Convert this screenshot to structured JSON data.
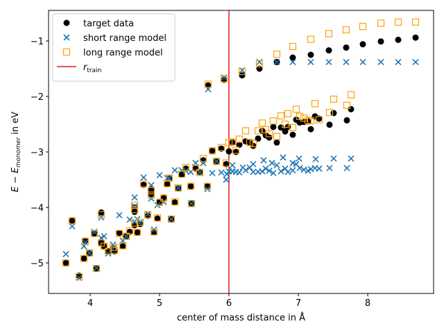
{
  "chart_data": {
    "type": "scatter",
    "xlabel": "center of mass distance in Å",
    "ylabel": "E − E_monomer in eV",
    "ylabel_main": "E − E",
    "ylabel_sub": "monomer",
    "ylabel_tail": " in eV",
    "xlim": [
      3.4,
      8.95
    ],
    "ylim": [
      -5.55,
      -0.45
    ],
    "x_ticks": [
      4,
      5,
      6,
      7,
      8
    ],
    "y_ticks": [
      -5,
      -4,
      -3,
      -2,
      -1
    ],
    "x_tick_labels": [
      "4",
      "5",
      "6",
      "7",
      "8"
    ],
    "y_tick_labels": [
      "−5",
      "−4",
      "−3",
      "−2",
      "−1"
    ],
    "legend_position": "upper-left",
    "legend": [
      {
        "label": "target data",
        "marker": "circle",
        "color": "#000000"
      },
      {
        "label": "short range model",
        "marker": "x",
        "color": "#1f77b4"
      },
      {
        "label": "long range model",
        "marker": "square",
        "color": "#ff9f0a"
      },
      {
        "label_main": "r",
        "label_sub": "train",
        "marker": "line",
        "color": "#e31a1c"
      }
    ],
    "vline": {
      "x": 6.0,
      "color": "#e31a1c"
    },
    "series": [
      {
        "name": "target data",
        "marker": "circle",
        "color": "#000000",
        "points": [
          [
            3.65,
            -5.0
          ],
          [
            3.74,
            -4.24
          ],
          [
            3.84,
            -5.23
          ],
          [
            3.91,
            -4.92
          ],
          [
            3.93,
            -4.6
          ],
          [
            3.99,
            -4.83
          ],
          [
            4.06,
            -4.47
          ],
          [
            4.09,
            -5.1
          ],
          [
            4.16,
            -4.09
          ],
          [
            4.16,
            -4.64
          ],
          [
            4.2,
            -4.7
          ],
          [
            4.26,
            -4.79
          ],
          [
            4.33,
            -4.74
          ],
          [
            4.35,
            -4.79
          ],
          [
            4.42,
            -4.46
          ],
          [
            4.47,
            -4.7
          ],
          [
            4.52,
            -4.52
          ],
          [
            4.57,
            -4.44
          ],
          [
            4.64,
            -4.0
          ],
          [
            4.64,
            -4.08
          ],
          [
            4.64,
            -4.32
          ],
          [
            4.68,
            -4.45
          ],
          [
            4.72,
            -4.3
          ],
          [
            4.77,
            -3.59
          ],
          [
            4.83,
            -4.15
          ],
          [
            4.88,
            -3.68
          ],
          [
            4.88,
            -3.76
          ],
          [
            4.92,
            -4.45
          ],
          [
            4.97,
            -4.2
          ],
          [
            5.0,
            -3.9
          ],
          [
            5.06,
            -3.83
          ],
          [
            5.11,
            -3.58
          ],
          [
            5.14,
            -3.48
          ],
          [
            5.17,
            -4.21
          ],
          [
            5.22,
            -3.91
          ],
          [
            5.27,
            -3.66
          ],
          [
            5.32,
            -3.41
          ],
          [
            5.38,
            -3.3
          ],
          [
            5.45,
            -3.62
          ],
          [
            5.46,
            -3.93
          ],
          [
            5.52,
            -3.3
          ],
          [
            5.58,
            -3.36
          ],
          [
            5.63,
            -3.15
          ],
          [
            5.69,
            -3.62
          ],
          [
            5.7,
            -1.8
          ],
          [
            5.76,
            -2.98
          ],
          [
            5.82,
            -3.17
          ],
          [
            5.89,
            -2.94
          ],
          [
            5.93,
            -1.7
          ],
          [
            5.96,
            -3.22
          ],
          [
            6.0,
            -2.99
          ],
          [
            6.05,
            -2.83
          ],
          [
            6.1,
            -3.0
          ],
          [
            6.15,
            -2.87
          ],
          [
            6.19,
            -1.62
          ],
          [
            6.24,
            -2.81
          ],
          [
            6.3,
            -2.83
          ],
          [
            6.35,
            -2.89
          ],
          [
            6.42,
            -2.76
          ],
          [
            6.44,
            -1.5
          ],
          [
            6.48,
            -2.62
          ],
          [
            6.53,
            -2.7
          ],
          [
            6.58,
            -2.74
          ],
          [
            6.64,
            -2.55
          ],
          [
            6.69,
            -2.83
          ],
          [
            6.69,
            -1.38
          ],
          [
            6.75,
            -2.56
          ],
          [
            6.81,
            -2.63
          ],
          [
            6.85,
            -2.55
          ],
          [
            6.92,
            -1.3
          ],
          [
            6.92,
            -2.69
          ],
          [
            6.97,
            -2.42
          ],
          [
            7.02,
            -2.47
          ],
          [
            7.08,
            -2.46
          ],
          [
            7.14,
            -2.45
          ],
          [
            7.18,
            -1.25
          ],
          [
            7.18,
            -2.59
          ],
          [
            7.24,
            -2.36
          ],
          [
            7.3,
            -2.4
          ],
          [
            7.44,
            -1.17
          ],
          [
            7.45,
            -2.51
          ],
          [
            7.51,
            -2.3
          ],
          [
            7.69,
            -1.12
          ],
          [
            7.7,
            -2.43
          ],
          [
            7.76,
            -2.23
          ],
          [
            7.93,
            -1.06
          ],
          [
            8.19,
            -1.01
          ],
          [
            8.44,
            -0.98
          ],
          [
            8.69,
            -0.94
          ]
        ]
      },
      {
        "name": "short range model",
        "marker": "x",
        "color": "#1f77b4",
        "points": [
          [
            3.65,
            -4.84
          ],
          [
            3.74,
            -4.34
          ],
          [
            3.84,
            -5.27
          ],
          [
            3.91,
            -4.7
          ],
          [
            3.93,
            -4.63
          ],
          [
            3.99,
            -4.82
          ],
          [
            4.06,
            -4.44
          ],
          [
            4.09,
            -5.09
          ],
          [
            4.16,
            -4.18
          ],
          [
            4.16,
            -4.55
          ],
          [
            4.2,
            -4.52
          ],
          [
            4.26,
            -4.83
          ],
          [
            4.33,
            -4.67
          ],
          [
            4.35,
            -4.71
          ],
          [
            4.42,
            -4.14
          ],
          [
            4.47,
            -4.6
          ],
          [
            4.52,
            -4.52
          ],
          [
            4.57,
            -4.22
          ],
          [
            4.64,
            -3.82
          ],
          [
            4.64,
            -3.98
          ],
          [
            4.64,
            -4.26
          ],
          [
            4.68,
            -4.21
          ],
          [
            4.72,
            -4.27
          ],
          [
            4.77,
            -3.46
          ],
          [
            4.83,
            -4.12
          ],
          [
            4.88,
            -3.6
          ],
          [
            4.88,
            -3.84
          ],
          [
            4.92,
            -4.4
          ],
          [
            4.97,
            -3.96
          ],
          [
            5.0,
            -3.42
          ],
          [
            5.06,
            -3.9
          ],
          [
            5.11,
            -3.47
          ],
          [
            5.14,
            -3.48
          ],
          [
            5.17,
            -4.21
          ],
          [
            5.22,
            -3.33
          ],
          [
            5.27,
            -3.65
          ],
          [
            5.32,
            -3.33
          ],
          [
            5.38,
            -3.34
          ],
          [
            5.45,
            -3.36
          ],
          [
            5.46,
            -3.93
          ],
          [
            5.52,
            -3.2
          ],
          [
            5.58,
            -3.37
          ],
          [
            5.63,
            -3.2
          ],
          [
            5.69,
            -3.67
          ],
          [
            5.7,
            -1.87
          ],
          [
            5.76,
            -3.38
          ],
          [
            5.82,
            -3.17
          ],
          [
            5.89,
            -3.37
          ],
          [
            5.93,
            -1.66
          ],
          [
            5.96,
            -3.5
          ],
          [
            6.0,
            -3.35
          ],
          [
            6.05,
            -3.24
          ],
          [
            6.1,
            -3.36
          ],
          [
            6.15,
            -3.37
          ],
          [
            6.19,
            -1.53
          ],
          [
            6.24,
            -3.33
          ],
          [
            6.3,
            -3.28
          ],
          [
            6.35,
            -3.36
          ],
          [
            6.42,
            -3.36
          ],
          [
            6.44,
            -1.38
          ],
          [
            6.48,
            -3.35
          ],
          [
            6.53,
            -3.3
          ],
          [
            6.58,
            -3.34
          ],
          [
            6.64,
            -3.38
          ],
          [
            6.69,
            -3.24
          ],
          [
            6.69,
            -1.38
          ],
          [
            6.75,
            -3.35
          ],
          [
            6.81,
            -3.3
          ],
          [
            6.85,
            -3.36
          ],
          [
            6.92,
            -1.38
          ],
          [
            6.92,
            -3.33
          ],
          [
            6.97,
            -3.22
          ],
          [
            7.02,
            -3.29
          ],
          [
            7.08,
            -3.32
          ],
          [
            7.14,
            -3.34
          ],
          [
            7.18,
            -1.38
          ],
          [
            7.18,
            -3.31
          ],
          [
            7.24,
            -3.29
          ],
          [
            7.3,
            -3.3
          ],
          [
            7.44,
            -1.38
          ],
          [
            7.45,
            -3.29
          ],
          [
            7.51,
            -3.12
          ],
          [
            7.69,
            -1.38
          ],
          [
            7.7,
            -3.29
          ],
          [
            7.76,
            -3.12
          ],
          [
            7.93,
            -1.38
          ],
          [
            8.19,
            -1.38
          ],
          [
            8.44,
            -1.38
          ],
          [
            8.69,
            -1.38
          ],
          [
            6.05,
            -3.35
          ],
          [
            6.2,
            -3.28
          ],
          [
            6.35,
            -3.22
          ],
          [
            6.5,
            -3.15
          ],
          [
            6.62,
            -3.2
          ],
          [
            6.78,
            -3.1
          ],
          [
            6.92,
            -3.2
          ],
          [
            7.01,
            -3.12
          ],
          [
            7.25,
            -3.13
          ],
          [
            5.97,
            -3.4
          ]
        ]
      },
      {
        "name": "long range model",
        "marker": "square",
        "color": "#ff9f0a",
        "points": [
          [
            3.65,
            -5.0
          ],
          [
            3.74,
            -4.24
          ],
          [
            3.84,
            -5.25
          ],
          [
            3.91,
            -4.92
          ],
          [
            3.93,
            -4.61
          ],
          [
            3.99,
            -4.82
          ],
          [
            4.06,
            -4.47
          ],
          [
            4.09,
            -5.1
          ],
          [
            4.16,
            -4.13
          ],
          [
            4.16,
            -4.64
          ],
          [
            4.2,
            -4.7
          ],
          [
            4.26,
            -4.79
          ],
          [
            4.33,
            -4.72
          ],
          [
            4.35,
            -4.77
          ],
          [
            4.42,
            -4.47
          ],
          [
            4.47,
            -4.69
          ],
          [
            4.52,
            -4.52
          ],
          [
            4.57,
            -4.42
          ],
          [
            4.64,
            -3.96
          ],
          [
            4.64,
            -4.04
          ],
          [
            4.64,
            -4.28
          ],
          [
            4.68,
            -4.45
          ],
          [
            4.72,
            -4.27
          ],
          [
            4.77,
            -3.57
          ],
          [
            4.83,
            -4.13
          ],
          [
            4.88,
            -3.7
          ],
          [
            4.88,
            -3.78
          ],
          [
            4.92,
            -4.44
          ],
          [
            4.97,
            -4.19
          ],
          [
            5.0,
            -3.91
          ],
          [
            5.06,
            -3.83
          ],
          [
            5.11,
            -3.57
          ],
          [
            5.14,
            -3.47
          ],
          [
            5.17,
            -4.21
          ],
          [
            5.22,
            -3.9
          ],
          [
            5.27,
            -3.65
          ],
          [
            5.32,
            -3.4
          ],
          [
            5.38,
            -3.28
          ],
          [
            5.45,
            -3.62
          ],
          [
            5.46,
            -3.93
          ],
          [
            5.52,
            -3.28
          ],
          [
            5.58,
            -3.37
          ],
          [
            5.63,
            -3.12
          ],
          [
            5.69,
            -3.62
          ],
          [
            5.7,
            -1.78
          ],
          [
            5.76,
            -2.98
          ],
          [
            5.82,
            -3.17
          ],
          [
            5.89,
            -2.92
          ],
          [
            5.93,
            -1.68
          ],
          [
            5.96,
            -3.2
          ],
          [
            6.0,
            -2.83
          ],
          [
            6.05,
            -2.82
          ],
          [
            6.1,
            -2.97
          ],
          [
            6.15,
            -2.77
          ],
          [
            6.19,
            -1.55
          ],
          [
            6.24,
            -2.62
          ],
          [
            6.3,
            -2.83
          ],
          [
            6.35,
            -2.85
          ],
          [
            6.42,
            -2.62
          ],
          [
            6.44,
            -1.41
          ],
          [
            6.48,
            -2.48
          ],
          [
            6.53,
            -2.6
          ],
          [
            6.58,
            -2.67
          ],
          [
            6.64,
            -2.44
          ],
          [
            6.69,
            -2.72
          ],
          [
            6.69,
            -1.24
          ],
          [
            6.75,
            -2.35
          ],
          [
            6.81,
            -2.5
          ],
          [
            6.85,
            -2.31
          ],
          [
            6.92,
            -1.1
          ],
          [
            6.92,
            -2.56
          ],
          [
            6.97,
            -2.23
          ],
          [
            7.02,
            -2.36
          ],
          [
            7.08,
            -2.39
          ],
          [
            7.14,
            -2.43
          ],
          [
            7.18,
            -0.97
          ],
          [
            7.18,
            -2.44
          ],
          [
            7.24,
            -2.13
          ],
          [
            7.3,
            -2.42
          ],
          [
            7.44,
            -0.87
          ],
          [
            7.45,
            -2.29
          ],
          [
            7.51,
            -2.05
          ],
          [
            7.69,
            -0.8
          ],
          [
            7.7,
            -2.16
          ],
          [
            7.76,
            -1.97
          ],
          [
            7.93,
            -0.74
          ],
          [
            8.19,
            -0.68
          ],
          [
            8.44,
            -0.66
          ],
          [
            8.69,
            -0.66
          ]
        ]
      }
    ]
  }
}
